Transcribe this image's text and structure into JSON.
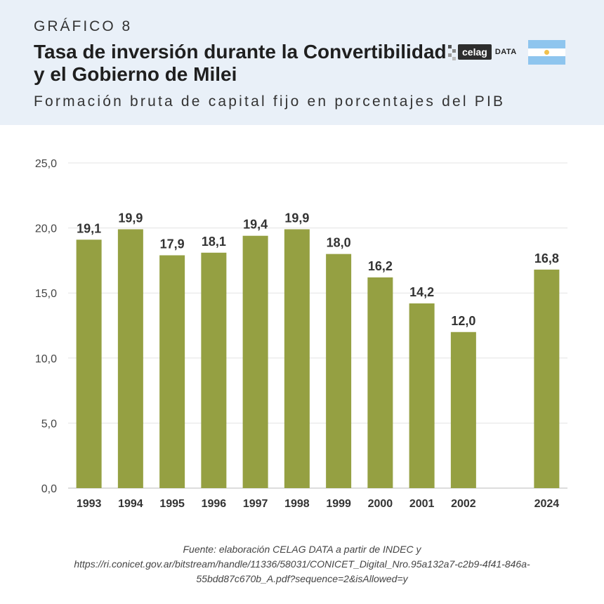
{
  "header": {
    "kicker": "GRÁFICO 8",
    "title": "Tasa de inversión durante la Convertibilidad y el Gobierno de Milei",
    "subtitle": "Formación bruta de capital fijo en porcentajes del PIB",
    "logo_text": "celag",
    "logo_suffix": "DATA"
  },
  "colors": {
    "bar": "#95a042",
    "header_bg": "#e9f0f8",
    "grid": "#e3e3e3"
  },
  "chart_data": {
    "type": "bar",
    "title": "Tasa de inversión durante la Convertibilidad y el Gobierno de Milei",
    "subtitle": "Formación bruta de capital fijo en porcentajes del PIB",
    "categories": [
      "1993",
      "1994",
      "1995",
      "1996",
      "1997",
      "1998",
      "1999",
      "2000",
      "2001",
      "2002",
      "",
      "2024"
    ],
    "values": [
      19.1,
      19.9,
      17.9,
      18.1,
      19.4,
      19.9,
      18.0,
      16.2,
      14.2,
      12.0,
      null,
      16.8
    ],
    "value_labels": [
      "19,1",
      "19,9",
      "17,9",
      "18,1",
      "19,4",
      "19,9",
      "18,0",
      "16,2",
      "14,2",
      "12,0",
      "",
      "16,8"
    ],
    "ylim": [
      0,
      25
    ],
    "yticks": [
      0,
      5,
      10,
      15,
      20,
      25
    ],
    "ytick_labels": [
      "0,0",
      "5,0",
      "10,0",
      "15,0",
      "20,0",
      "25,0"
    ],
    "xlabel": "",
    "ylabel": "",
    "grid": true
  },
  "footer": {
    "source_line1": "Fuente: elaboración CELAG DATA a partir de INDEC y",
    "source_line2": "https://ri.conicet.gov.ar/bitstream/handle/11336/58031/CONICET_Digital_Nro.95a132a7-c2b9-4f41-846a-",
    "source_line3": "55bdd87c670b_A.pdf?sequence=2&isAllowed=y"
  }
}
